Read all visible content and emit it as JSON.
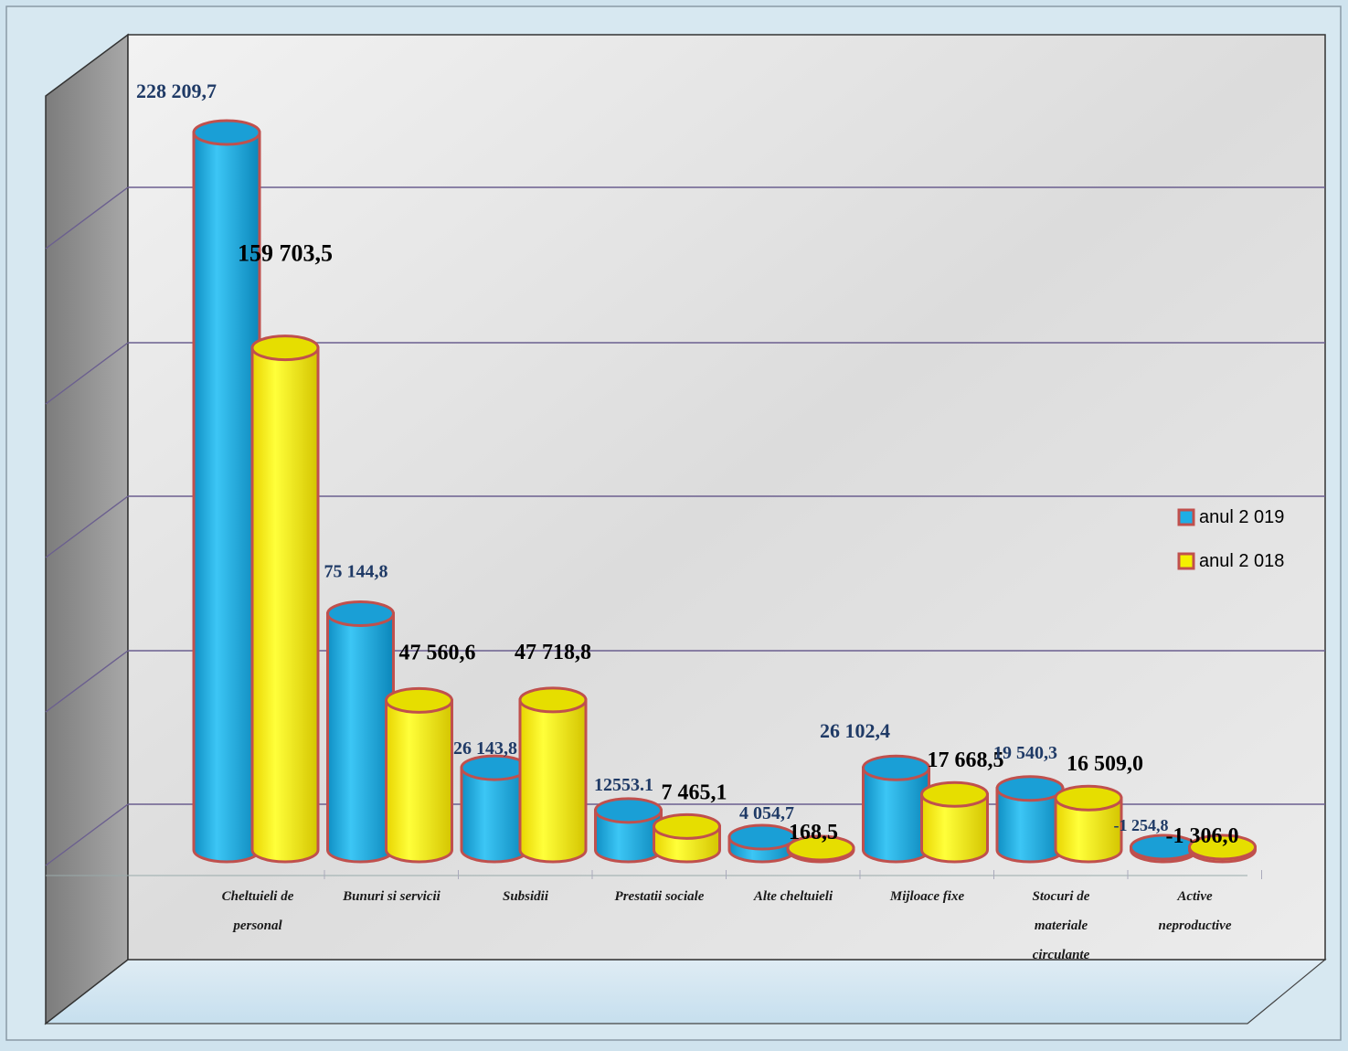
{
  "chart_data": {
    "type": "bar",
    "style": "3d-cylinder",
    "categories": [
      [
        "Cheltuieli de",
        "personal"
      ],
      [
        "Bunuri si servicii"
      ],
      [
        "Subsidii"
      ],
      [
        "Prestatii sociale"
      ],
      [
        "Alte cheltuieli"
      ],
      [
        "Mijloace fixe"
      ],
      [
        "Stocuri de",
        "materiale",
        "circulante"
      ],
      [
        "Active",
        "neproductive"
      ]
    ],
    "series": [
      {
        "name": "anul 2 019",
        "color": "#1eaee6",
        "values": [
          228209.7,
          75144.8,
          26143.8,
          12553.1,
          4054.7,
          26102.4,
          19540.3,
          -1254.8
        ],
        "labels": [
          "228 209,7",
          "75 144,8",
          "26 143,8",
          "12553.1",
          "4 054,7",
          "26 102,4",
          "19 540,3",
          "-1 254,8"
        ],
        "label_color": "#1f3a66"
      },
      {
        "name": "anul 2 018",
        "color": "#f4f000",
        "values": [
          159703.5,
          47560.6,
          47718.8,
          7465.1,
          168.5,
          17668.5,
          16509.0,
          -1306.0
        ],
        "labels": [
          "159 703,5",
          "47 560,6",
          "47 718,8",
          "7 465,1",
          "168,5",
          "17 668,5",
          "16 509,0",
          "-1 306,0"
        ],
        "label_color": "#000000"
      }
    ],
    "ylim": [
      -5000,
      240000
    ],
    "grid": true,
    "legend_position": "right",
    "outline_color": "#c0504d"
  }
}
